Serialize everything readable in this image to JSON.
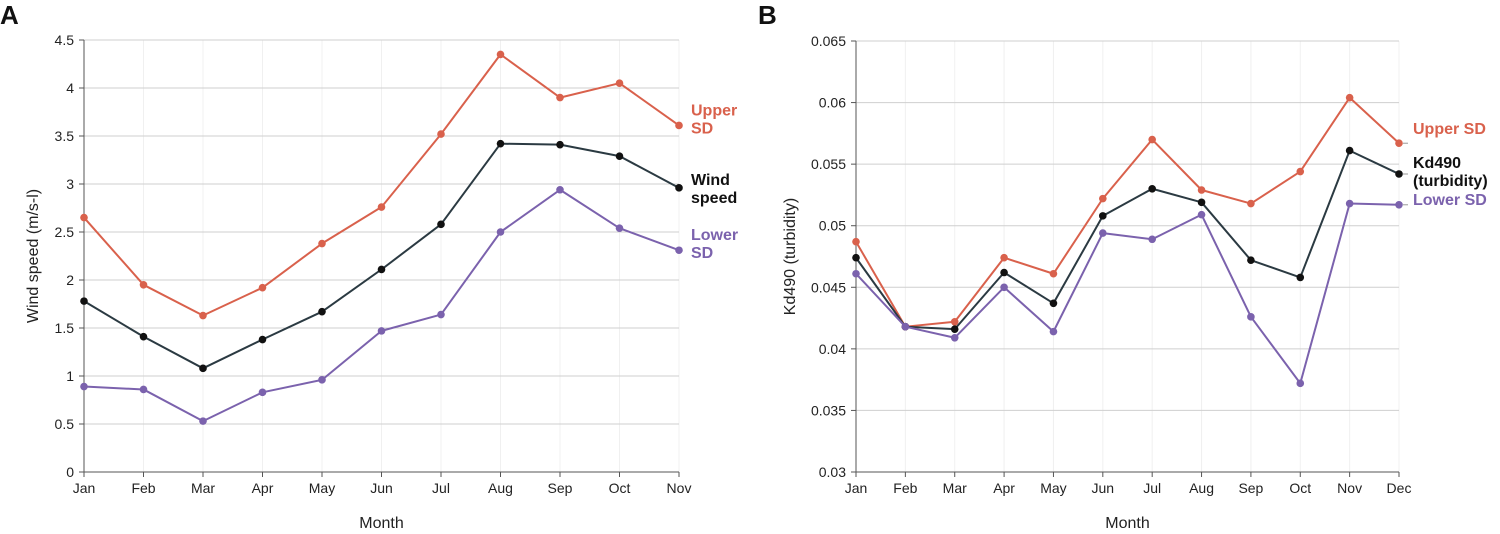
{
  "chart_data": [
    {
      "type": "line",
      "panel_label": "A",
      "title": "",
      "xlabel": "Month",
      "ylabel": "Wind speed (m/s-l)",
      "categories": [
        "Jan",
        "Feb",
        "Mar",
        "Apr",
        "May",
        "Jun",
        "Jul",
        "Aug",
        "Sep",
        "Oct",
        "Nov"
      ],
      "ylim": [
        0,
        4.5
      ],
      "yticks": [
        0,
        0.5,
        1,
        1.5,
        2,
        2.5,
        3,
        3.5,
        4,
        4.5
      ],
      "ytick_labels": [
        "0",
        "0.5",
        "1",
        "1.5",
        "2",
        "2.5",
        "3",
        "3.5",
        "4",
        "4.5"
      ],
      "grid": true,
      "series": [
        {
          "name": "Upper SD",
          "label_lines": [
            "Upper",
            "SD"
          ],
          "color": "#d9614c",
          "values": [
            2.65,
            1.95,
            1.63,
            1.92,
            2.38,
            2.76,
            3.52,
            4.35,
            3.9,
            4.05,
            3.61
          ]
        },
        {
          "name": "Wind speed",
          "label_lines": [
            "Wind",
            "speed"
          ],
          "color": "#2b3a42",
          "marker_color": "#111111",
          "label_color": "#111111",
          "values": [
            1.78,
            1.41,
            1.08,
            1.38,
            1.67,
            2.11,
            2.58,
            3.42,
            3.41,
            3.29,
            2.96
          ]
        },
        {
          "name": "Lower SD",
          "label_lines": [
            "Lower",
            "SD"
          ],
          "color": "#7b62ad",
          "values": [
            0.89,
            0.86,
            0.53,
            0.83,
            0.96,
            1.47,
            1.64,
            2.5,
            2.94,
            2.54,
            2.31
          ]
        }
      ]
    },
    {
      "type": "line",
      "panel_label": "B",
      "title": "",
      "xlabel": "Month",
      "ylabel": "Kd490 (turbidity)",
      "categories": [
        "Jan",
        "Feb",
        "Mar",
        "Apr",
        "May",
        "Jun",
        "Jul",
        "Aug",
        "Sep",
        "Oct",
        "Nov",
        "Dec"
      ],
      "ylim": [
        0.03,
        0.065
      ],
      "yticks": [
        0.03,
        0.035,
        0.04,
        0.045,
        0.05,
        0.055,
        0.06,
        0.065
      ],
      "ytick_labels": [
        "0.03",
        "0.035",
        "0.04",
        "0.045",
        "0.05",
        "0.055",
        "0.06",
        "0.065"
      ],
      "grid": true,
      "series": [
        {
          "name": "Upper SD",
          "label_lines": [
            "Upper SD"
          ],
          "color": "#d9614c",
          "values": [
            0.0487,
            0.0418,
            0.0422,
            0.0474,
            0.0461,
            0.0522,
            0.057,
            0.0529,
            0.0518,
            0.0544,
            0.0604,
            0.0567
          ]
        },
        {
          "name": "Kd490 (turbidity)",
          "label_lines": [
            "Kd490",
            "(turbidity)"
          ],
          "color": "#2b3a42",
          "marker_color": "#111111",
          "label_color": "#111111",
          "values": [
            0.0474,
            0.0418,
            0.0416,
            0.0462,
            0.0437,
            0.0508,
            0.053,
            0.0519,
            0.0472,
            0.0458,
            0.0561,
            0.0542
          ]
        },
        {
          "name": "Lower SD",
          "label_lines": [
            "Lower SD"
          ],
          "color": "#7b62ad",
          "values": [
            0.0461,
            0.0418,
            0.0409,
            0.045,
            0.0414,
            0.0494,
            0.0489,
            0.0509,
            0.0426,
            0.0372,
            0.0518,
            0.0517
          ]
        }
      ]
    }
  ]
}
